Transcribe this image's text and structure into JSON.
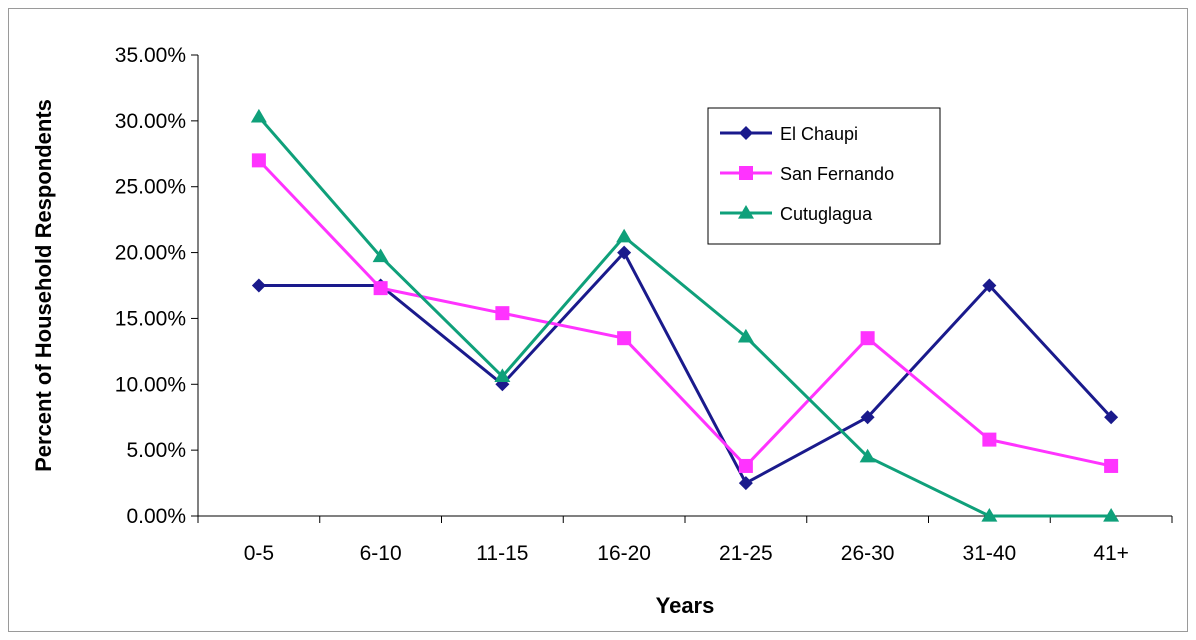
{
  "chart_data": {
    "type": "line",
    "title": "",
    "xlabel": "Years",
    "ylabel": "Percent of Household Respondents",
    "categories": [
      "0-5",
      "6-10",
      "11-15",
      "16-20",
      "21-25",
      "26-30",
      "31-40",
      "41+"
    ],
    "ylim": [
      0,
      35
    ],
    "yticks": [
      0,
      5,
      10,
      15,
      20,
      25,
      30,
      35
    ],
    "ytick_labels": [
      "0.00%",
      "5.00%",
      "10.00%",
      "15.00%",
      "20.00%",
      "25.00%",
      "30.00%",
      "35.00%"
    ],
    "grid": false,
    "legend_position": "top-right",
    "series": [
      {
        "name": "El Chaupi",
        "color": "#1a1a8c",
        "marker": "diamond",
        "values": [
          17.5,
          17.5,
          10.0,
          20.0,
          2.5,
          7.5,
          17.5,
          7.5
        ]
      },
      {
        "name": "San Fernando",
        "color": "#ff33ff",
        "marker": "square",
        "values": [
          27.0,
          17.3,
          15.4,
          13.5,
          3.8,
          13.5,
          5.8,
          3.8
        ]
      },
      {
        "name": "Cutuglagua",
        "color": "#0fa07a",
        "marker": "triangle",
        "values": [
          30.3,
          19.7,
          10.6,
          21.2,
          13.6,
          4.5,
          0.0,
          0.0
        ]
      }
    ]
  }
}
